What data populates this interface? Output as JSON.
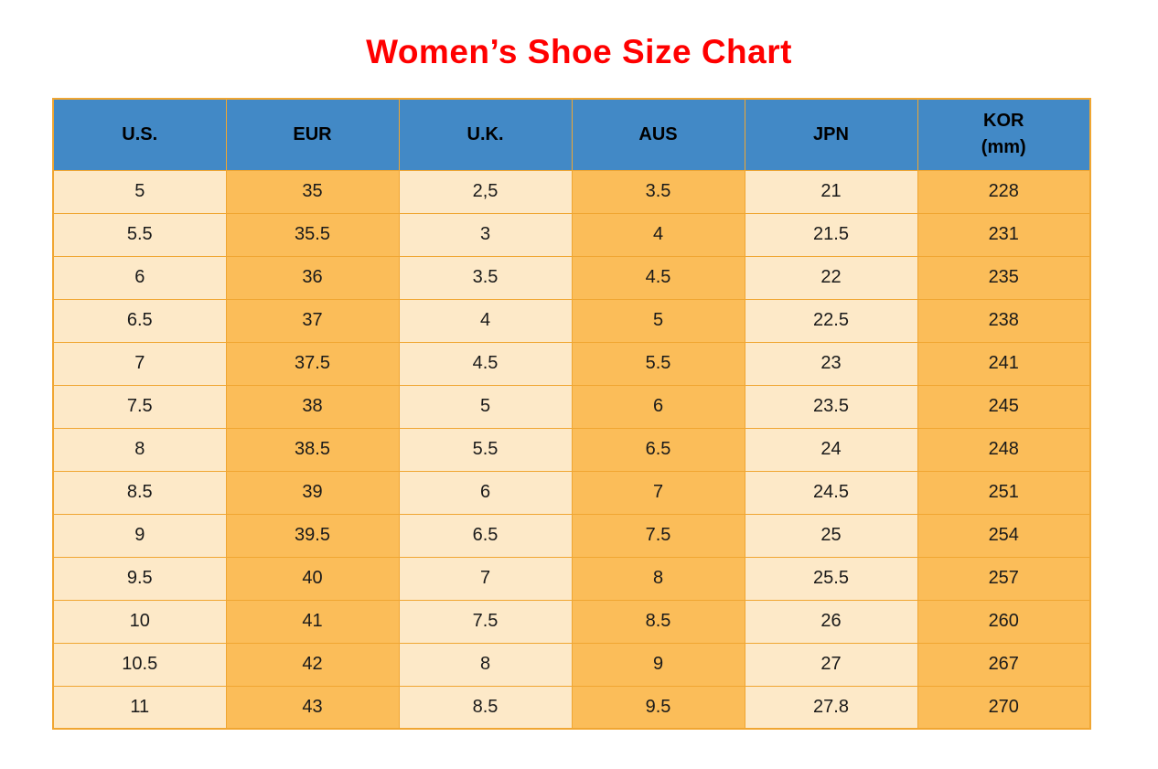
{
  "title": "Women’s Shoe Size Chart",
  "colors": {
    "title_red": "#ff0000",
    "header_blue": "#4289c6",
    "header_text": "#000000",
    "cell_cream": "#fde9c8",
    "cell_orange": "#fbbd59",
    "grid_border": "#f0a632",
    "cell_text": "#1a1a1a"
  },
  "table": {
    "headers": [
      {
        "label": "U.S."
      },
      {
        "label": "EUR"
      },
      {
        "label": "U.K."
      },
      {
        "label": "AUS"
      },
      {
        "label": "JPN"
      },
      {
        "label": "KOR",
        "sublabel": "(mm)"
      }
    ],
    "rows": [
      [
        "5",
        "35",
        "2,5",
        "3.5",
        "21",
        "228"
      ],
      [
        "5.5",
        "35.5",
        "3",
        "4",
        "21.5",
        "231"
      ],
      [
        "6",
        "36",
        "3.5",
        "4.5",
        "22",
        "235"
      ],
      [
        "6.5",
        "37",
        "4",
        "5",
        "22.5",
        "238"
      ],
      [
        "7",
        "37.5",
        "4.5",
        "5.5",
        "23",
        "241"
      ],
      [
        "7.5",
        "38",
        "5",
        "6",
        "23.5",
        "245"
      ],
      [
        "8",
        "38.5",
        "5.5",
        "6.5",
        "24",
        "248"
      ],
      [
        "8.5",
        "39",
        "6",
        "7",
        "24.5",
        "251"
      ],
      [
        "9",
        "39.5",
        "6.5",
        "7.5",
        "25",
        "254"
      ],
      [
        "9.5",
        "40",
        "7",
        "8",
        "25.5",
        "257"
      ],
      [
        "10",
        "41",
        "7.5",
        "8.5",
        "26",
        "260"
      ],
      [
        "10.5",
        "42",
        "8",
        "9",
        "27",
        "267"
      ],
      [
        "11",
        "43",
        "8.5",
        "9.5",
        "27.8",
        "270"
      ]
    ]
  },
  "chart_data": {
    "type": "table",
    "title": "Women’s Shoe Size Chart",
    "columns": [
      "U.S.",
      "EUR",
      "U.K.",
      "AUS",
      "JPN",
      "KOR (mm)"
    ],
    "rows": [
      [
        "5",
        "35",
        "2,5",
        "3.5",
        "21",
        "228"
      ],
      [
        "5.5",
        "35.5",
        "3",
        "4",
        "21.5",
        "231"
      ],
      [
        "6",
        "36",
        "3.5",
        "4.5",
        "22",
        "235"
      ],
      [
        "6.5",
        "37",
        "4",
        "5",
        "22.5",
        "238"
      ],
      [
        "7",
        "37.5",
        "4.5",
        "5.5",
        "23",
        "241"
      ],
      [
        "7.5",
        "38",
        "5",
        "6",
        "23.5",
        "245"
      ],
      [
        "8",
        "38.5",
        "5.5",
        "6.5",
        "24",
        "248"
      ],
      [
        "8.5",
        "39",
        "6",
        "7",
        "24.5",
        "251"
      ],
      [
        "9",
        "39.5",
        "6.5",
        "7.5",
        "25",
        "254"
      ],
      [
        "9.5",
        "40",
        "7",
        "8",
        "25.5",
        "257"
      ],
      [
        "10",
        "41",
        "7.5",
        "8.5",
        "26",
        "260"
      ],
      [
        "10.5",
        "42",
        "8",
        "9",
        "27",
        "267"
      ],
      [
        "11",
        "43",
        "8.5",
        "9.5",
        "27.8",
        "270"
      ]
    ],
    "layout": {
      "header_position": "top",
      "column_fill_pattern": [
        "cream",
        "orange",
        "cream",
        "orange",
        "cream",
        "orange"
      ],
      "grid": true
    }
  }
}
